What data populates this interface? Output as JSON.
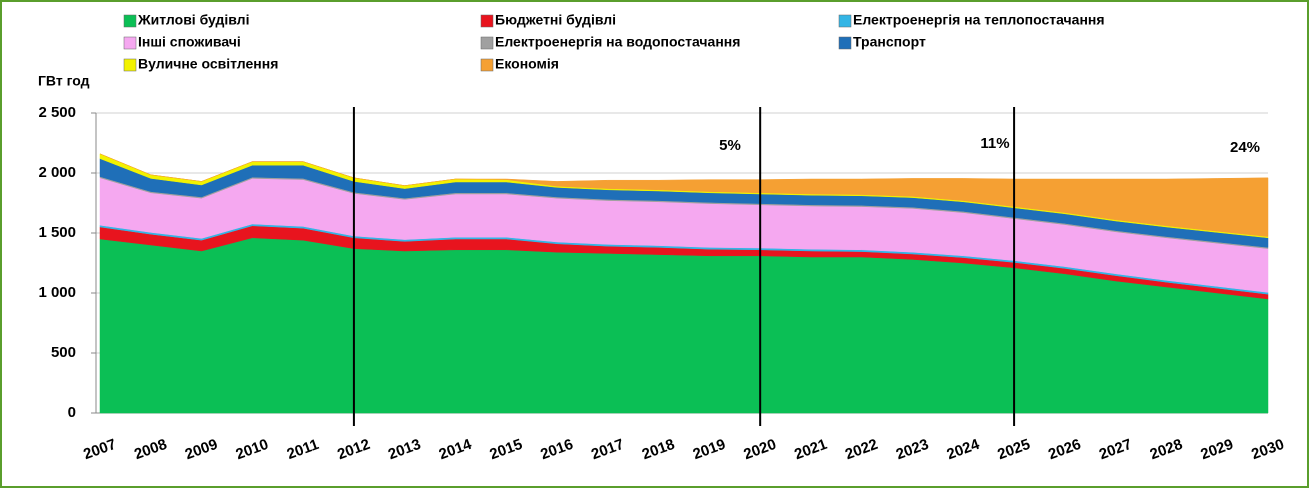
{
  "chart_data": {
    "type": "stacked_area",
    "ylabel": "ГВт год",
    "categories": [
      "2007",
      "2008",
      "2009",
      "2010",
      "2011",
      "2012",
      "2013",
      "2014",
      "2015",
      "2016",
      "2017",
      "2018",
      "2019",
      "2020",
      "2021",
      "2022",
      "2023",
      "2024",
      "2025",
      "2026",
      "2027",
      "2028",
      "2029",
      "2030"
    ],
    "series": [
      {
        "name": "Житлові будівлі",
        "color": "#0bbf55",
        "values": [
          1450,
          1400,
          1350,
          1460,
          1440,
          1370,
          1350,
          1360,
          1360,
          1340,
          1330,
          1320,
          1310,
          1310,
          1300,
          1300,
          1280,
          1250,
          1210,
          1160,
          1100,
          1050,
          1000,
          950
        ]
      },
      {
        "name": "Бюджетні будівлі",
        "color": "#e8141e",
        "values": [
          100,
          90,
          90,
          100,
          100,
          90,
          80,
          90,
          90,
          70,
          60,
          60,
          55,
          50,
          50,
          45,
          45,
          45,
          45,
          45,
          45,
          40,
          40,
          40
        ]
      },
      {
        "name": "Електроенергія на теплопостачання",
        "color": "#33b5e5",
        "values": [
          15,
          15,
          15,
          15,
          15,
          15,
          15,
          15,
          15,
          15,
          15,
          15,
          15,
          15,
          15,
          15,
          15,
          15,
          15,
          15,
          15,
          15,
          15,
          15
        ]
      },
      {
        "name": "Інші споживачі",
        "color": "#f5a8f0",
        "values": [
          395,
          330,
          335,
          380,
          390,
          355,
          335,
          360,
          360,
          365,
          365,
          365,
          365,
          360,
          360,
          360,
          365,
          360,
          350,
          350,
          350,
          355,
          360,
          365
        ]
      },
      {
        "name": "Електроенергія на водопостачання",
        "color": "#a0a0a0",
        "values": [
          10,
          10,
          10,
          10,
          10,
          10,
          10,
          10,
          10,
          10,
          10,
          10,
          10,
          10,
          10,
          10,
          10,
          10,
          10,
          10,
          10,
          10,
          10,
          10
        ]
      },
      {
        "name": "Транспорт",
        "color": "#1f6fb8",
        "values": [
          150,
          110,
          100,
          100,
          110,
          90,
          80,
          90,
          90,
          80,
          80,
          80,
          80,
          80,
          80,
          80,
          80,
          80,
          80,
          80,
          80,
          80,
          80,
          80
        ]
      },
      {
        "name": "Вуличне освітлення",
        "color": "#f2f200",
        "values": [
          40,
          30,
          30,
          30,
          30,
          30,
          25,
          25,
          20,
          10,
          10,
          10,
          10,
          10,
          10,
          10,
          10,
          10,
          10,
          10,
          10,
          10,
          10,
          10
        ]
      },
      {
        "name": "Економія",
        "color": "#f5a033",
        "values": [
          0,
          0,
          0,
          0,
          0,
          0,
          0,
          0,
          5,
          40,
          70,
          80,
          100,
          110,
          125,
          130,
          150,
          185,
          230,
          280,
          340,
          390,
          440,
          490
        ]
      }
    ],
    "annotations": [
      "5%",
      "11%",
      "24%"
    ],
    "ylim": [
      0,
      2500
    ],
    "yticks": [
      0,
      500,
      {
        "value": 1000,
        "label": "1 000"
      },
      {
        "value": 1500,
        "label": "1 500"
      },
      {
        "value": 2000,
        "label": "2 000"
      },
      {
        "value": 2500,
        "label": "2 500"
      }
    ],
    "grid": true
  }
}
